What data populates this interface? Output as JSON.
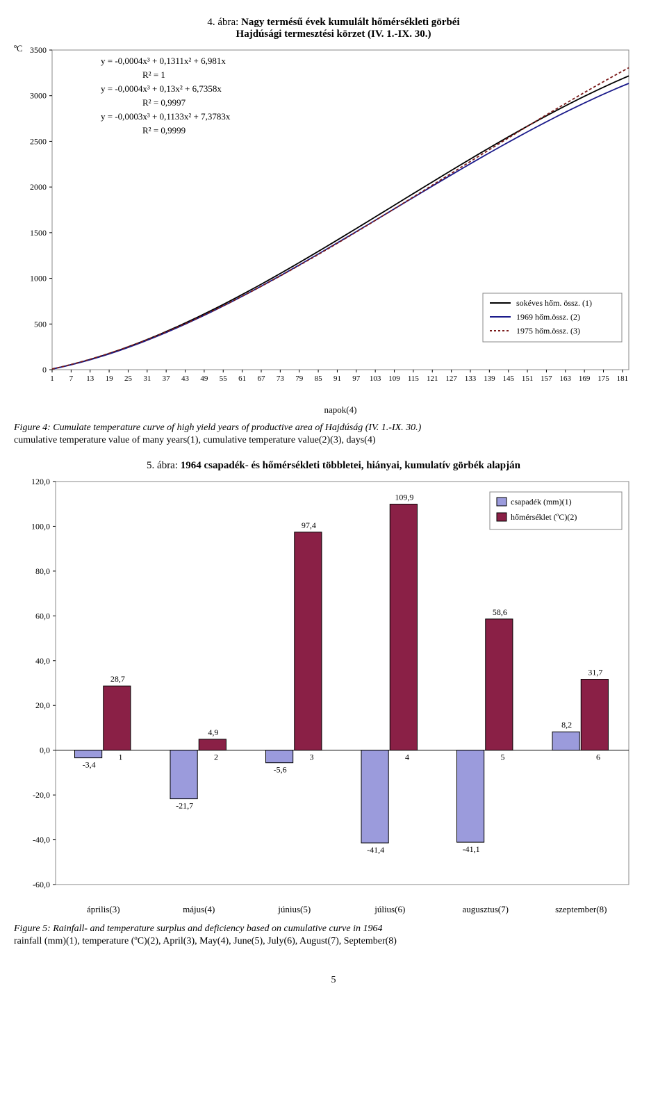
{
  "figure4": {
    "title_line1_prefix": "4. ábra: ",
    "title_line1_bold": "Nagy termésű évek kumulált hőmérsékleti görbéi",
    "title_line2_bold": "Hajdúsági termesztési körzet (IV. 1.-IX. 30.)",
    "y_axis_label": "ºC",
    "x_axis_label": "napok(4)",
    "type": "line",
    "xlim": [
      1,
      183
    ],
    "ylim": [
      0,
      3500
    ],
    "ytick_step": 500,
    "xticks": [
      1,
      7,
      13,
      19,
      25,
      31,
      37,
      43,
      49,
      55,
      61,
      67,
      73,
      79,
      85,
      91,
      97,
      103,
      109,
      115,
      121,
      127,
      133,
      139,
      145,
      151,
      157,
      163,
      169,
      175,
      181
    ],
    "background_color": "#ffffff",
    "grid": false,
    "line_width": 1.8,
    "equations": [
      "y = -0,0004x³ + 0,1311x² + 6,981x",
      "R² = 1",
      "y = -0,0004x³ + 0,13x² + 6,7358x",
      "R² = 0,9997",
      "y = -0,0003x³ + 0,1133x² + 7,3783x",
      "R² = 0,9999"
    ],
    "legend": [
      {
        "label": "sokéves hőm. össz. (1)",
        "color": "#000000",
        "dash": "solid"
      },
      {
        "label": "1969 hőm.össz. (2)",
        "color": "#1a1a8a",
        "dash": "solid"
      },
      {
        "label": "1975 hőm.össz. (3)",
        "color": "#7a1a1a",
        "dash": "3,3"
      }
    ],
    "series_colors": {
      "main": "#000000",
      "s1969": "#1a1a8a",
      "s1975": "#7a1a1a"
    },
    "caption_italic": "Figure 4: Cumulate temperature curve of high yield years of productive area of Hajdúság (IV. 1.-IX. 30.)",
    "caption_plain": "cumulative temperature value of many years(1), cumulative temperature value(2)(3), days(4)"
  },
  "figure5": {
    "title_prefix": "5. ábra: ",
    "title_bold": "1964 csapadék- és hőmérsékleti többletei, hiányai, kumulatív görbék alapján",
    "type": "bar",
    "ylim": [
      -60,
      120
    ],
    "ytick_step": 20,
    "background_color": "#ffffff",
    "bar_width": 0.3,
    "categories": [
      "1",
      "2",
      "3",
      "4",
      "5",
      "6"
    ],
    "category_labels": [
      "április(3)",
      "május(4)",
      "június(5)",
      "július(6)",
      "augusztus(7)",
      "szeptember(8)"
    ],
    "series": [
      {
        "name": "csapadék (mm)(1)",
        "color": "#9b9bdc",
        "border": "#000000",
        "values": [
          -3.4,
          -21.7,
          -5.6,
          -41.4,
          -41.1,
          8.2
        ],
        "labels": [
          "-3,4",
          "-21,7",
          "-5,6",
          "-41,4",
          "-41,1",
          "8,2"
        ]
      },
      {
        "name": "hőmérséklet (ºC)(2)",
        "color": "#8a2046",
        "border": "#000000",
        "values": [
          28.7,
          4.9,
          97.4,
          109.9,
          58.6,
          31.7
        ],
        "labels": [
          "28,7",
          "4,9",
          "97,4",
          "109,9",
          "58,6",
          "31,7"
        ]
      }
    ],
    "legend_colors": {
      "rain": "#9b9bdc",
      "temp": "#8a2046"
    },
    "caption_italic": "Figure 5: Rainfall- and temperature surplus and deficiency based on cumulative curve in 1964",
    "caption_plain": "rainfall (mm)(1), temperature (ºC)(2), April(3), May(4), June(5), July(6), August(7), September(8)"
  },
  "page_number": "5"
}
